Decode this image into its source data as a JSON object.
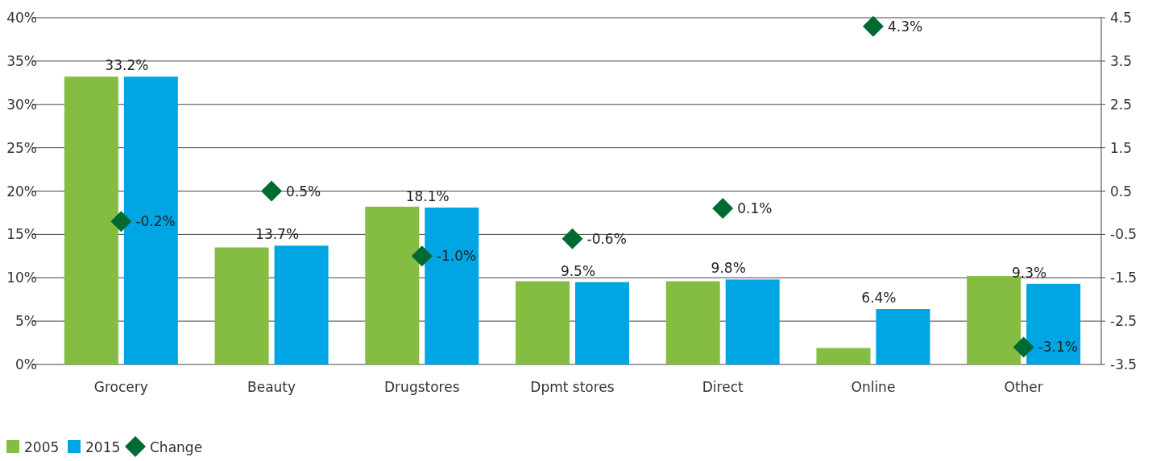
{
  "chart_data": {
    "type": "bar",
    "categories": [
      "Grocery",
      "Beauty",
      "Drugstores",
      "Dpmt stores",
      "Direct",
      "Online",
      "Other"
    ],
    "series": [
      {
        "name": "2005",
        "color": "#84bd41",
        "values": [
          33.2,
          13.5,
          18.2,
          9.6,
          9.6,
          1.9,
          10.2
        ]
      },
      {
        "name": "2015",
        "color": "#00a5e3",
        "values": [
          33.2,
          13.7,
          18.1,
          9.5,
          9.8,
          6.4,
          9.3
        ],
        "value_labels": [
          "33.2%",
          "13.7%",
          "18.1%",
          "9.5%",
          "9.8%",
          "6.4%",
          "9.3%"
        ]
      },
      {
        "name": "Change",
        "type": "scatter",
        "axis": "y2",
        "marker": "diamond",
        "color": "#006a33",
        "values": [
          -0.2,
          0.5,
          -1.0,
          -0.6,
          0.1,
          4.3,
          -3.1
        ],
        "value_labels": [
          "-0.2%",
          "0.5%",
          "-1.0%",
          "-0.6%",
          "0.1%",
          "4.3%",
          "-3.1%"
        ]
      }
    ],
    "ylim": [
      0,
      40
    ],
    "yticks": [
      {
        "value": 0,
        "label": "0%"
      },
      {
        "value": 5,
        "label": "5%"
      },
      {
        "value": 10,
        "label": "10%"
      },
      {
        "value": 15,
        "label": "15%"
      },
      {
        "value": 20,
        "label": "20%"
      },
      {
        "value": 25,
        "label": "25%"
      },
      {
        "value": 30,
        "label": "30%"
      },
      {
        "value": 35,
        "label": "35%"
      },
      {
        "value": 40,
        "label": "40%"
      }
    ],
    "y2lim": [
      -3.5,
      4.5
    ],
    "y2ticks": [
      -3.5,
      -2.5,
      -1.5,
      -0.5,
      0.5,
      1.5,
      2.5,
      3.5,
      4.5
    ],
    "grid": "y",
    "legend": "bottom left"
  }
}
